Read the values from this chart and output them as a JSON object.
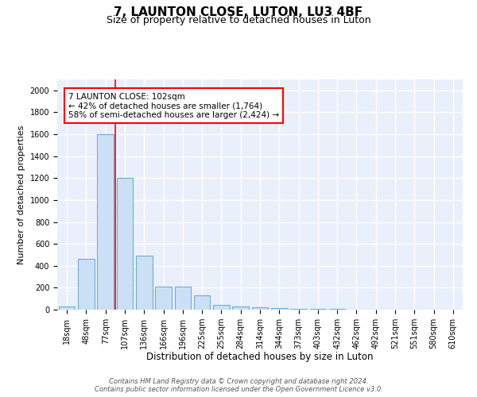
{
  "title": "7, LAUNTON CLOSE, LUTON, LU3 4BF",
  "subtitle": "Size of property relative to detached houses in Luton",
  "xlabel": "Distribution of detached houses by size in Luton",
  "ylabel": "Number of detached properties",
  "categories": [
    "18sqm",
    "48sqm",
    "77sqm",
    "107sqm",
    "136sqm",
    "166sqm",
    "196sqm",
    "225sqm",
    "255sqm",
    "284sqm",
    "314sqm",
    "344sqm",
    "373sqm",
    "403sqm",
    "432sqm",
    "462sqm",
    "492sqm",
    "521sqm",
    "551sqm",
    "580sqm",
    "610sqm"
  ],
  "values": [
    30,
    460,
    1600,
    1200,
    490,
    210,
    210,
    130,
    40,
    30,
    20,
    15,
    5,
    5,
    5,
    3,
    3,
    3,
    2,
    2,
    2
  ],
  "bar_color": "#cce0f5",
  "bar_edge_color": "#6baed6",
  "red_line_x": 2.5,
  "annotation_line1": "7 LAUNTON CLOSE: 102sqm",
  "annotation_line2": "← 42% of detached houses are smaller (1,764)",
  "annotation_line3": "58% of semi-detached houses are larger (2,424) →",
  "ylim": [
    0,
    2100
  ],
  "yticks": [
    0,
    200,
    400,
    600,
    800,
    1000,
    1200,
    1400,
    1600,
    1800,
    2000
  ],
  "background_color": "#eaf0fb",
  "grid_color": "#ffffff",
  "footer_text": "Contains HM Land Registry data © Crown copyright and database right 2024.\nContains public sector information licensed under the Open Government Licence v3.0.",
  "title_fontsize": 11,
  "subtitle_fontsize": 9,
  "xlabel_fontsize": 8.5,
  "ylabel_fontsize": 8,
  "tick_fontsize": 7,
  "annotation_fontsize": 7.5,
  "footer_fontsize": 6
}
